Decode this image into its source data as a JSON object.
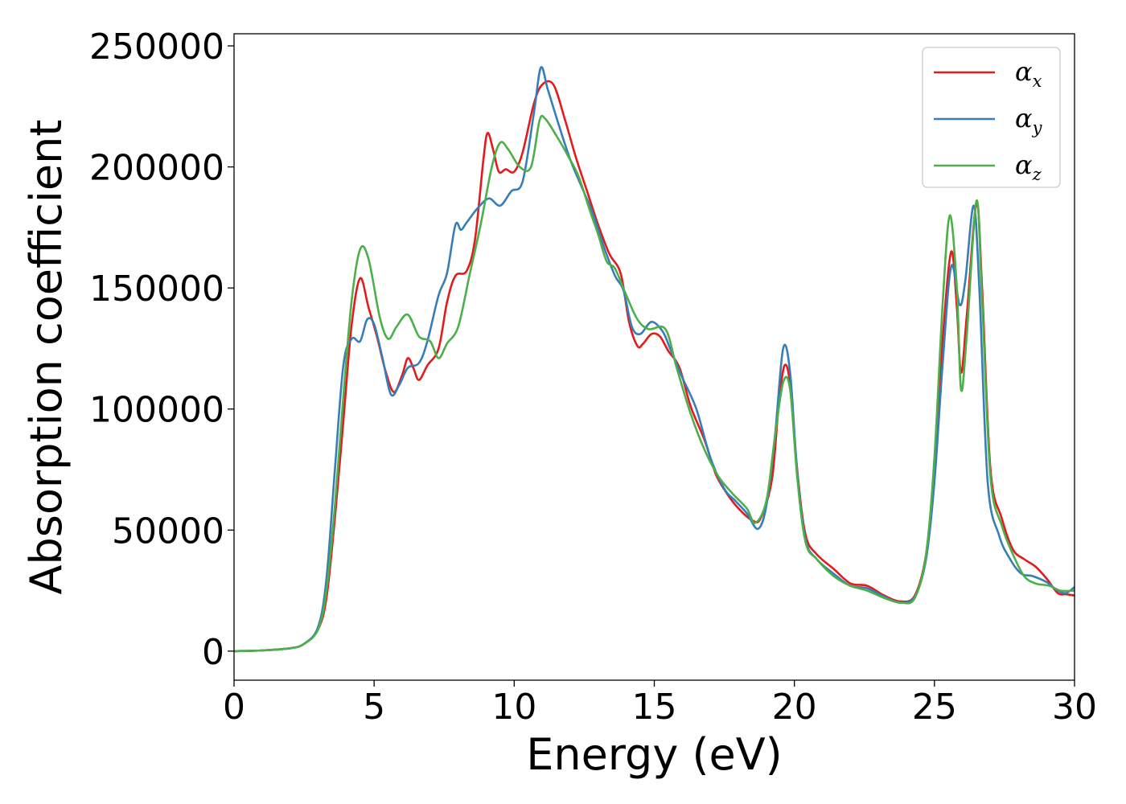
{
  "chart_data": {
    "type": "line",
    "xlabel": "Energy (eV)",
    "ylabel": "Absorption coefficient",
    "xlim": [
      0,
      30
    ],
    "ylim": [
      -12000,
      255000
    ],
    "xticks": [
      0,
      5,
      10,
      15,
      20,
      25,
      30
    ],
    "yticks": [
      0,
      50000,
      100000,
      150000,
      200000,
      250000
    ],
    "xtick_labels": [
      "0",
      "5",
      "10",
      "15",
      "20",
      "25",
      "30"
    ],
    "ytick_labels": [
      "0",
      "50000",
      "100000",
      "150000",
      "200000",
      "250000"
    ],
    "grid": false,
    "legend_position": "top-right",
    "series": [
      {
        "name": "α",
        "subscript": "x",
        "color": "#e41a1c",
        "points": [
          [
            0,
            0
          ],
          [
            1,
            300
          ],
          [
            2,
            1200
          ],
          [
            2.5,
            3000
          ],
          [
            3,
            9000
          ],
          [
            3.3,
            22000
          ],
          [
            3.6,
            55000
          ],
          [
            3.9,
            95000
          ],
          [
            4.2,
            135000
          ],
          [
            4.5,
            154000
          ],
          [
            4.8,
            142000
          ],
          [
            5.1,
            130000
          ],
          [
            5.4,
            116000
          ],
          [
            5.7,
            107000
          ],
          [
            6,
            114000
          ],
          [
            6.2,
            121000
          ],
          [
            6.4,
            117000
          ],
          [
            6.6,
            112000
          ],
          [
            6.9,
            118000
          ],
          [
            7.3,
            125000
          ],
          [
            7.6,
            144000
          ],
          [
            7.9,
            155000
          ],
          [
            8.3,
            157000
          ],
          [
            8.6,
            170000
          ],
          [
            8.9,
            203000
          ],
          [
            9.05,
            214000
          ],
          [
            9.25,
            207000
          ],
          [
            9.45,
            198000
          ],
          [
            9.7,
            199000
          ],
          [
            10,
            198000
          ],
          [
            10.3,
            206000
          ],
          [
            10.7,
            226000
          ],
          [
            11,
            234000
          ],
          [
            11.4,
            234000
          ],
          [
            11.8,
            220000
          ],
          [
            12.2,
            204000
          ],
          [
            12.6,
            190000
          ],
          [
            13,
            176000
          ],
          [
            13.4,
            164000
          ],
          [
            13.8,
            156000
          ],
          [
            14.1,
            136000
          ],
          [
            14.4,
            126000
          ],
          [
            14.6,
            127000
          ],
          [
            14.9,
            131000
          ],
          [
            15.2,
            130000
          ],
          [
            15.5,
            124000
          ],
          [
            15.9,
            117000
          ],
          [
            16.3,
            101000
          ],
          [
            16.8,
            87000
          ],
          [
            17.2,
            73000
          ],
          [
            17.6,
            65000
          ],
          [
            18,
            59000
          ],
          [
            18.5,
            54000
          ],
          [
            18.8,
            55000
          ],
          [
            19.2,
            71000
          ],
          [
            19.45,
            103000
          ],
          [
            19.65,
            118000
          ],
          [
            19.85,
            110000
          ],
          [
            20.1,
            75000
          ],
          [
            20.4,
            48000
          ],
          [
            20.8,
            40000
          ],
          [
            21.4,
            34000
          ],
          [
            22,
            28000
          ],
          [
            22.6,
            27000
          ],
          [
            23.2,
            23000
          ],
          [
            23.8,
            20500
          ],
          [
            24.3,
            23000
          ],
          [
            24.7,
            40000
          ],
          [
            25,
            75000
          ],
          [
            25.3,
            130000
          ],
          [
            25.6,
            165000
          ],
          [
            25.8,
            142000
          ],
          [
            25.95,
            115000
          ],
          [
            26.15,
            138000
          ],
          [
            26.5,
            185000
          ],
          [
            26.7,
            150000
          ],
          [
            27,
            75000
          ],
          [
            27.4,
            55000
          ],
          [
            27.8,
            42000
          ],
          [
            28.2,
            38000
          ],
          [
            28.6,
            35000
          ],
          [
            29,
            30000
          ],
          [
            29.4,
            24000
          ],
          [
            29.7,
            23500
          ],
          [
            30,
            23000
          ]
        ]
      },
      {
        "name": "α",
        "subscript": "y",
        "color": "#377eb8",
        "points": [
          [
            0,
            0
          ],
          [
            1,
            300
          ],
          [
            2,
            1200
          ],
          [
            2.5,
            3000
          ],
          [
            3,
            10000
          ],
          [
            3.3,
            30000
          ],
          [
            3.6,
            75000
          ],
          [
            3.9,
            118000
          ],
          [
            4.2,
            129000
          ],
          [
            4.5,
            128000
          ],
          [
            4.75,
            137000
          ],
          [
            5,
            135000
          ],
          [
            5.3,
            121000
          ],
          [
            5.6,
            106000
          ],
          [
            5.9,
            110000
          ],
          [
            6.2,
            117000
          ],
          [
            6.6,
            119000
          ],
          [
            6.9,
            128000
          ],
          [
            7.3,
            147000
          ],
          [
            7.6,
            156000
          ],
          [
            7.9,
            176000
          ],
          [
            8.1,
            174000
          ],
          [
            8.3,
            177000
          ],
          [
            8.7,
            183000
          ],
          [
            9.1,
            187000
          ],
          [
            9.5,
            184000
          ],
          [
            9.9,
            190000
          ],
          [
            10.3,
            194000
          ],
          [
            10.7,
            222000
          ],
          [
            10.95,
            241000
          ],
          [
            11.2,
            232000
          ],
          [
            11.6,
            217000
          ],
          [
            12,
            203000
          ],
          [
            12.4,
            192000
          ],
          [
            12.8,
            181000
          ],
          [
            13.2,
            167000
          ],
          [
            13.6,
            155000
          ],
          [
            13.9,
            149000
          ],
          [
            14.2,
            134000
          ],
          [
            14.5,
            131000
          ],
          [
            14.9,
            136000
          ],
          [
            15.3,
            132000
          ],
          [
            15.6,
            124000
          ],
          [
            16,
            113000
          ],
          [
            16.5,
            100000
          ],
          [
            17,
            80000
          ],
          [
            17.5,
            67000
          ],
          [
            17.9,
            62000
          ],
          [
            18.3,
            57000
          ],
          [
            18.7,
            50500
          ],
          [
            19,
            60000
          ],
          [
            19.3,
            88000
          ],
          [
            19.6,
            125000
          ],
          [
            19.85,
            115000
          ],
          [
            20.1,
            74000
          ],
          [
            20.4,
            46000
          ],
          [
            20.8,
            38000
          ],
          [
            21.4,
            32000
          ],
          [
            22,
            27000
          ],
          [
            22.6,
            26000
          ],
          [
            23.2,
            22500
          ],
          [
            23.8,
            20000
          ],
          [
            24.3,
            22500
          ],
          [
            24.7,
            38000
          ],
          [
            25,
            70000
          ],
          [
            25.3,
            120000
          ],
          [
            25.6,
            159000
          ],
          [
            25.9,
            143000
          ],
          [
            26.1,
            153000
          ],
          [
            26.4,
            184000
          ],
          [
            26.6,
            150000
          ],
          [
            26.9,
            70000
          ],
          [
            27.3,
            48000
          ],
          [
            27.7,
            38000
          ],
          [
            28.1,
            32000
          ],
          [
            28.5,
            31000
          ],
          [
            29,
            28500
          ],
          [
            29.4,
            25000
          ],
          [
            29.7,
            24000
          ],
          [
            30,
            26500
          ]
        ]
      },
      {
        "name": "α",
        "subscript": "z",
        "color": "#4daf4a",
        "points": [
          [
            0,
            0
          ],
          [
            1,
            300
          ],
          [
            2,
            1200
          ],
          [
            2.5,
            3000
          ],
          [
            3,
            9000
          ],
          [
            3.3,
            25000
          ],
          [
            3.6,
            60000
          ],
          [
            3.9,
            105000
          ],
          [
            4.2,
            145000
          ],
          [
            4.5,
            166000
          ],
          [
            4.8,
            162000
          ],
          [
            5.2,
            138000
          ],
          [
            5.5,
            129000
          ],
          [
            5.8,
            134000
          ],
          [
            6.2,
            139000
          ],
          [
            6.6,
            130000
          ],
          [
            7,
            128000
          ],
          [
            7.3,
            121000
          ],
          [
            7.6,
            127000
          ],
          [
            8,
            134000
          ],
          [
            8.4,
            155000
          ],
          [
            8.8,
            176000
          ],
          [
            9.2,
            200000
          ],
          [
            9.5,
            210000
          ],
          [
            9.8,
            207000
          ],
          [
            10.2,
            200000
          ],
          [
            10.6,
            200000
          ],
          [
            10.9,
            219000
          ],
          [
            11.1,
            220000
          ],
          [
            11.5,
            213000
          ],
          [
            11.9,
            205000
          ],
          [
            12.3,
            196000
          ],
          [
            12.7,
            182000
          ],
          [
            13,
            172000
          ],
          [
            13.3,
            161000
          ],
          [
            13.6,
            158000
          ],
          [
            14,
            147000
          ],
          [
            14.4,
            137000
          ],
          [
            14.8,
            133000
          ],
          [
            15.4,
            133000
          ],
          [
            15.8,
            117000
          ],
          [
            16.3,
            98000
          ],
          [
            16.8,
            83000
          ],
          [
            17.3,
            72000
          ],
          [
            17.8,
            65000
          ],
          [
            18.3,
            59000
          ],
          [
            18.6,
            53000
          ],
          [
            19,
            62000
          ],
          [
            19.3,
            88000
          ],
          [
            19.6,
            111000
          ],
          [
            19.85,
            108000
          ],
          [
            20.1,
            72000
          ],
          [
            20.4,
            45000
          ],
          [
            20.8,
            38000
          ],
          [
            21.4,
            31000
          ],
          [
            22,
            27000
          ],
          [
            22.6,
            25000
          ],
          [
            23.2,
            22000
          ],
          [
            23.8,
            20000
          ],
          [
            24.3,
            22000
          ],
          [
            24.7,
            40000
          ],
          [
            25,
            80000
          ],
          [
            25.3,
            145000
          ],
          [
            25.55,
            180000
          ],
          [
            25.8,
            150000
          ],
          [
            25.95,
            108000
          ],
          [
            26.15,
            130000
          ],
          [
            26.5,
            186000
          ],
          [
            26.7,
            145000
          ],
          [
            27,
            72000
          ],
          [
            27.4,
            52000
          ],
          [
            27.8,
            40000
          ],
          [
            28.2,
            31000
          ],
          [
            28.6,
            28000
          ],
          [
            29.1,
            27000
          ],
          [
            29.5,
            25000
          ],
          [
            30,
            25000
          ]
        ]
      }
    ]
  }
}
